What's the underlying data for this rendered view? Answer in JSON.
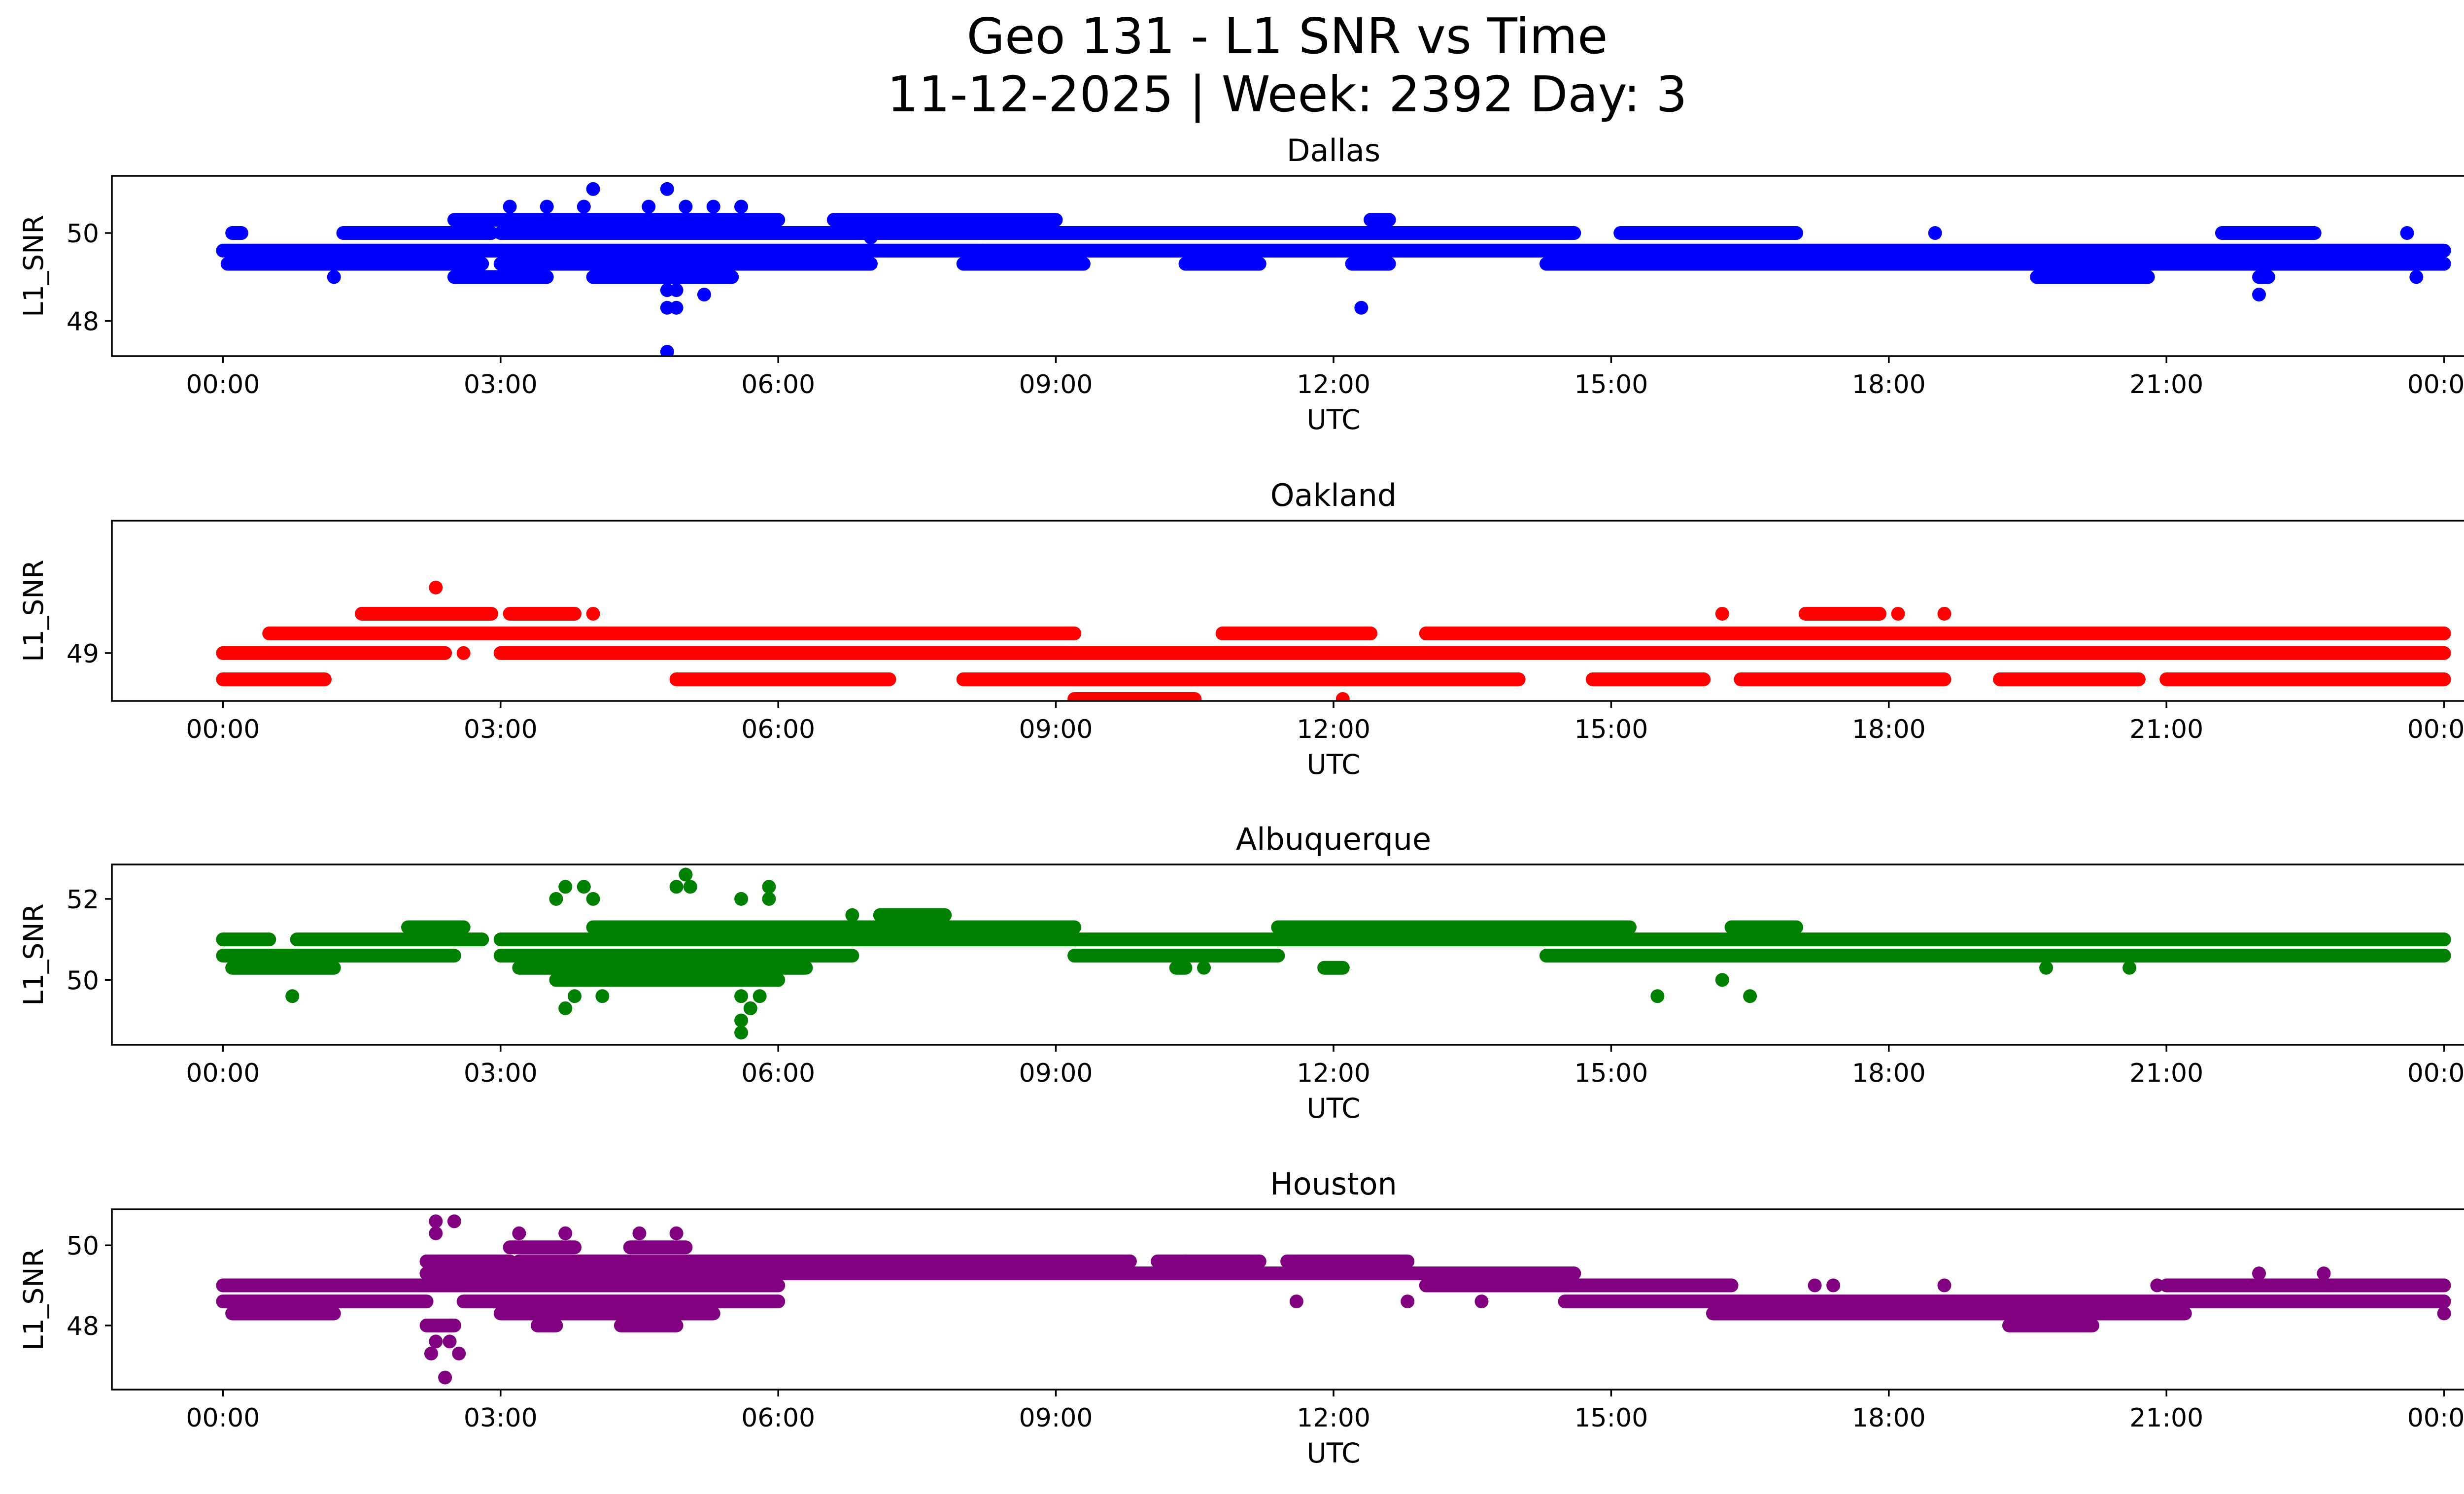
{
  "figure": {
    "title_line1": "Geo 131 - L1 SNR vs Time",
    "title_line2": "11-12-2025 | Week: 2392 Day: 3"
  },
  "chart_data": [
    {
      "type": "scatter",
      "title": "Dallas",
      "xlabel": "UTC",
      "ylabel": "L1_SNR",
      "color": "#0000ff",
      "xlim": [
        -1.2,
        25.2
      ],
      "ylim": [
        47.2,
        51.3
      ],
      "xticks": [
        "00:00",
        "03:00",
        "06:00",
        "09:00",
        "12:00",
        "15:00",
        "18:00",
        "21:00",
        "00:00"
      ],
      "xtick_values": [
        0,
        3,
        6,
        9,
        12,
        15,
        18,
        21,
        24
      ],
      "yticks": [
        48,
        50
      ],
      "bands": [
        {
          "y": 49.6,
          "ranges": [
            [
              0,
              24
            ]
          ]
        },
        {
          "y": 49.3,
          "ranges": [
            [
              0.05,
              2.8
            ],
            [
              3.0,
              7.0
            ],
            [
              8.0,
              9.3
            ],
            [
              10.4,
              11.2
            ],
            [
              12.2,
              12.6
            ],
            [
              14.3,
              24
            ]
          ]
        },
        {
          "y": 50.0,
          "ranges": [
            [
              0.1,
              0.2
            ],
            [
              1.3,
              2.9
            ],
            [
              3.0,
              7.2
            ],
            [
              7.2,
              9.0
            ],
            [
              9.0,
              14.6
            ],
            [
              15.1,
              17.0
            ],
            [
              21.6,
              22.6
            ]
          ]
        },
        {
          "y": 50.3,
          "ranges": [
            [
              2.5,
              6.0
            ],
            [
              6.6,
              9.0
            ],
            [
              12.4,
              12.6
            ]
          ]
        },
        {
          "y": 49.0,
          "ranges": [
            [
              2.5,
              3.5
            ],
            [
              4.0,
              5.5
            ],
            [
              19.6,
              20.8
            ],
            [
              22.0,
              22.1
            ]
          ]
        }
      ],
      "points": [
        [
          4.0,
          51.0
        ],
        [
          4.8,
          51.0
        ],
        [
          3.1,
          50.6
        ],
        [
          3.5,
          50.6
        ],
        [
          3.9,
          50.6
        ],
        [
          4.6,
          50.6
        ],
        [
          5.0,
          50.6
        ],
        [
          5.3,
          50.6
        ],
        [
          5.6,
          50.6
        ],
        [
          4.8,
          48.7
        ],
        [
          4.9,
          48.7
        ],
        [
          5.2,
          48.6
        ],
        [
          4.8,
          48.3
        ],
        [
          4.9,
          48.3
        ],
        [
          4.8,
          47.3
        ],
        [
          12.3,
          48.3
        ],
        [
          22.0,
          48.6
        ],
        [
          8.2,
          49.6
        ],
        [
          18.5,
          50.0
        ],
        [
          23.6,
          50.0
        ],
        [
          1.2,
          49.0
        ],
        [
          23.7,
          49.0
        ],
        [
          10.5,
          49.3
        ],
        [
          7.0,
          49.9
        ]
      ]
    },
    {
      "type": "scatter",
      "title": "Oakland",
      "xlabel": "UTC",
      "ylabel": "L1_SNR",
      "color": "#ff0000",
      "xlim": [
        -1.2,
        25.2
      ],
      "ylim": [
        48.27,
        51.02
      ],
      "xticks": [
        "00:00",
        "03:00",
        "06:00",
        "09:00",
        "12:00",
        "15:00",
        "18:00",
        "21:00",
        "00:00"
      ],
      "xtick_values": [
        0,
        3,
        6,
        9,
        12,
        15,
        18,
        21,
        24
      ],
      "yticks": [
        49
      ],
      "bands": [
        {
          "y": 49.0,
          "ranges": [
            [
              0,
              2.4
            ],
            [
              3.0,
              24
            ]
          ]
        },
        {
          "y": 48.6,
          "ranges": [
            [
              0,
              1.1
            ],
            [
              4.9,
              7.2
            ],
            [
              8.0,
              14.0
            ],
            [
              14.8,
              16.0
            ],
            [
              16.4,
              18.6
            ],
            [
              19.2,
              20.7
            ],
            [
              21.0,
              24
            ]
          ]
        },
        {
          "y": 49.3,
          "ranges": [
            [
              0.5,
              9.2
            ],
            [
              10.8,
              12.4
            ],
            [
              13.0,
              24
            ]
          ]
        },
        {
          "y": 49.6,
          "ranges": [
            [
              1.5,
              2.9
            ],
            [
              3.1,
              3.8
            ],
            [
              17.1,
              17.9
            ]
          ]
        },
        {
          "y": 48.3,
          "ranges": [
            [
              9.2,
              10.5
            ]
          ]
        }
      ],
      "points": [
        [
          2.3,
          50.0
        ],
        [
          4.0,
          49.6
        ],
        [
          16.2,
          49.6
        ],
        [
          18.1,
          49.6
        ],
        [
          18.6,
          49.6
        ],
        [
          12.1,
          48.3
        ],
        [
          2.6,
          49.0
        ]
      ]
    },
    {
      "type": "scatter",
      "title": "Albuquerque",
      "xlabel": "UTC",
      "ylabel": "L1_SNR",
      "color": "#008000",
      "xlim": [
        -1.2,
        25.2
      ],
      "ylim": [
        48.4,
        52.85
      ],
      "xticks": [
        "00:00",
        "03:00",
        "06:00",
        "09:00",
        "12:00",
        "15:00",
        "18:00",
        "21:00",
        "00:00"
      ],
      "xtick_values": [
        0,
        3,
        6,
        9,
        12,
        15,
        18,
        21,
        24
      ],
      "yticks": [
        50,
        52
      ],
      "bands": [
        {
          "y": 50.6,
          "ranges": [
            [
              0,
              2.5
            ],
            [
              3.0,
              6.8
            ],
            [
              9.2,
              11.4
            ],
            [
              14.3,
              24
            ]
          ]
        },
        {
          "y": 51.0,
          "ranges": [
            [
              0,
              0.5
            ],
            [
              0.8,
              2.8
            ],
            [
              3.0,
              24
            ]
          ]
        },
        {
          "y": 51.3,
          "ranges": [
            [
              2.0,
              2.6
            ],
            [
              4.0,
              9.2
            ],
            [
              11.4,
              15.2
            ],
            [
              16.3,
              17.0
            ]
          ]
        },
        {
          "y": 50.3,
          "ranges": [
            [
              0.1,
              1.2
            ],
            [
              3.2,
              6.3
            ],
            [
              10.3,
              10.4
            ],
            [
              11.9,
              12.1
            ]
          ]
        },
        {
          "y": 51.6,
          "ranges": [
            [
              7.1,
              7.8
            ]
          ]
        },
        {
          "y": 50.0,
          "ranges": [
            [
              3.6,
              6.0
            ]
          ]
        }
      ],
      "points": [
        [
          5.0,
          52.6
        ],
        [
          5.05,
          52.3
        ],
        [
          3.7,
          52.3
        ],
        [
          3.9,
          52.3
        ],
        [
          4.9,
          52.3
        ],
        [
          5.9,
          52.3
        ],
        [
          3.6,
          52.0
        ],
        [
          4.0,
          52.0
        ],
        [
          5.6,
          52.0
        ],
        [
          5.9,
          52.0
        ],
        [
          6.8,
          51.6
        ],
        [
          3.8,
          49.6
        ],
        [
          4.1,
          49.6
        ],
        [
          5.6,
          49.6
        ],
        [
          5.8,
          49.6
        ],
        [
          0.75,
          49.6
        ],
        [
          15.5,
          49.6
        ],
        [
          16.5,
          49.6
        ],
        [
          3.7,
          49.3
        ],
        [
          5.7,
          49.3
        ],
        [
          5.6,
          49.0
        ],
        [
          5.6,
          48.7
        ],
        [
          16.2,
          50.0
        ],
        [
          10.6,
          50.3
        ],
        [
          19.7,
          50.3
        ],
        [
          20.6,
          50.3
        ]
      ]
    },
    {
      "type": "scatter",
      "title": "Houston",
      "xlabel": "UTC",
      "ylabel": "L1_SNR",
      "color": "#800080",
      "xlim": [
        -1.2,
        25.2
      ],
      "ylim": [
        46.4,
        50.9
      ],
      "xticks": [
        "00:00",
        "03:00",
        "06:00",
        "09:00",
        "12:00",
        "15:00",
        "18:00",
        "21:00",
        "00:00"
      ],
      "xtick_values": [
        0,
        3,
        6,
        9,
        12,
        15,
        18,
        21,
        24
      ],
      "yticks": [
        48,
        50
      ],
      "bands": [
        {
          "y": 49.0,
          "ranges": [
            [
              0,
              6.0
            ],
            [
              13.0,
              16.3
            ],
            [
              21.0,
              24
            ]
          ]
        },
        {
          "y": 48.6,
          "ranges": [
            [
              0,
              2.2
            ],
            [
              2.6,
              6.0
            ],
            [
              14.5,
              24
            ]
          ]
        },
        {
          "y": 49.3,
          "ranges": [
            [
              2.2,
              14.6
            ]
          ]
        },
        {
          "y": 48.3,
          "ranges": [
            [
              0.1,
              1.2
            ],
            [
              3.0,
              5.3
            ],
            [
              16.1,
              21.2
            ]
          ]
        },
        {
          "y": 49.6,
          "ranges": [
            [
              2.2,
              3.1
            ],
            [
              3.2,
              9.8
            ],
            [
              10.1,
              11.2
            ],
            [
              11.5,
              12.8
            ]
          ]
        },
        {
          "y": 48.0,
          "ranges": [
            [
              2.2,
              2.5
            ],
            [
              3.4,
              3.6
            ],
            [
              4.3,
              4.9
            ],
            [
              19.3,
              20.2
            ]
          ]
        },
        {
          "y": 49.95,
          "ranges": [
            [
              3.1,
              3.8
            ],
            [
              4.4,
              5.0
            ]
          ]
        }
      ],
      "points": [
        [
          2.3,
          50.6
        ],
        [
          2.5,
          50.6
        ],
        [
          2.3,
          50.3
        ],
        [
          3.2,
          50.3
        ],
        [
          3.7,
          50.3
        ],
        [
          4.5,
          50.3
        ],
        [
          4.9,
          50.3
        ],
        [
          2.3,
          47.6
        ],
        [
          2.45,
          47.6
        ],
        [
          2.25,
          47.3
        ],
        [
          2.55,
          47.3
        ],
        [
          2.4,
          46.7
        ],
        [
          22.0,
          49.3
        ],
        [
          22.7,
          49.3
        ],
        [
          12.8,
          48.6
        ],
        [
          13.6,
          48.6
        ],
        [
          11.6,
          48.6
        ],
        [
          9.8,
          49.6
        ],
        [
          10.4,
          49.6
        ],
        [
          17.2,
          49.0
        ],
        [
          17.4,
          49.0
        ],
        [
          18.6,
          49.0
        ],
        [
          20.9,
          49.0
        ],
        [
          24.0,
          48.3
        ]
      ]
    }
  ]
}
